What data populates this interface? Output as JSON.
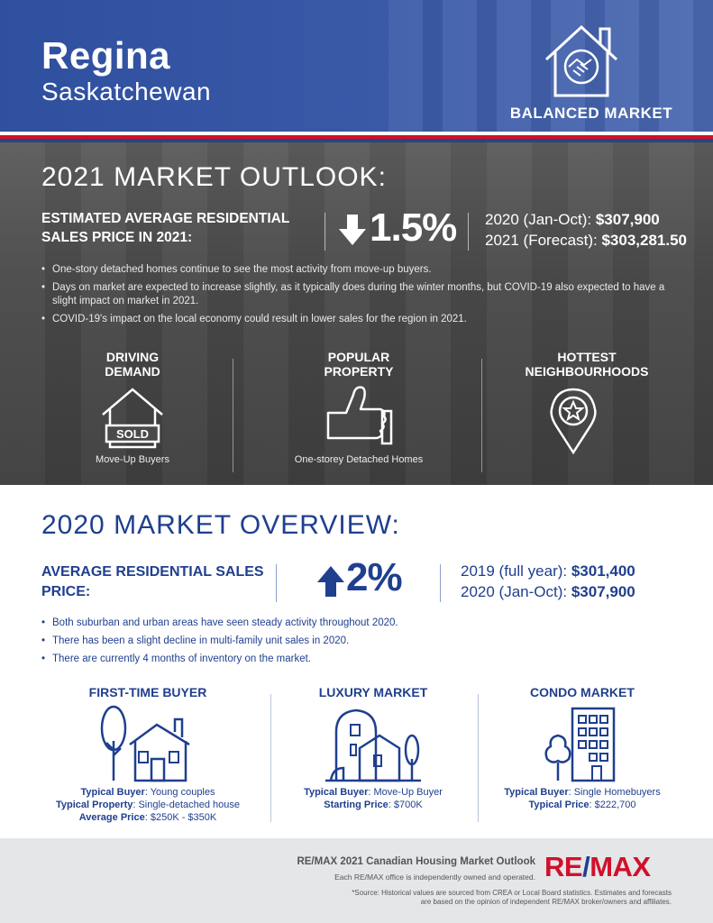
{
  "header": {
    "city": "Regina",
    "province": "Saskatchewan",
    "badge_label": "BALANCED MARKET",
    "badge_icon": "house-handshake-icon"
  },
  "outlook": {
    "title": "2021 MARKET OUTLOOK:",
    "price_label": "ESTIMATED AVERAGE RESIDENTIAL SALES PRICE IN 2021:",
    "change_direction": "down",
    "change_value": "1.5%",
    "line1_label": "2020 (Jan-Oct): ",
    "line1_value": "$307,900",
    "line2_label": "2021 (Forecast): ",
    "line2_value": "$303,281.50",
    "bullets": [
      "One-story detached homes continue to see the most activity from move-up buyers.",
      "Days on market are expected to increase slightly, as it typically does during the winter months, but COVID-19 also expected to have a slight impact on market in 2021.",
      "COVID-19's impact on the local economy could result in lower sales for the region in 2021."
    ],
    "columns": [
      {
        "heading_1": "DRIVING",
        "heading_2": "DEMAND",
        "icon": "house-sold-icon",
        "sold_text": "SOLD",
        "caption": "Move-Up Buyers"
      },
      {
        "heading_1": "POPULAR",
        "heading_2": "PROPERTY",
        "icon": "thumbs-up-icon",
        "caption": "One-storey Detached Homes"
      },
      {
        "heading_1": "HOTTEST",
        "heading_2": "NEIGHBOURHOODS",
        "icon": "map-pin-star-icon",
        "caption": ""
      }
    ]
  },
  "overview": {
    "title": "2020 MARKET OVERVIEW:",
    "price_label": "AVERAGE RESIDENTIAL SALES PRICE:",
    "change_direction": "up",
    "change_value": "2%",
    "line1_label": "2019 (full year): ",
    "line1_value": "$301,400",
    "line2_label": "2020 (Jan-Oct): ",
    "line2_value": "$307,900",
    "bullets": [
      "Both suburban and urban areas have seen steady activity throughout 2020.",
      "There has been a slight decline in multi-family unit sales in 2020.",
      "There are currently 4 months of inventory on the market."
    ],
    "columns": [
      {
        "heading": "FIRST-TIME BUYER",
        "icon": "house-tree-icon",
        "rows": [
          {
            "label": "Typical Buyer",
            "value": ": Young couples"
          },
          {
            "label": "Typical Property",
            "value": ": Single-detached house"
          },
          {
            "label": "Average Price",
            "value": ": $250K - $350K"
          }
        ]
      },
      {
        "heading": "LUXURY MARKET",
        "icon": "luxury-house-icon",
        "rows": [
          {
            "label": "Typical Buyer",
            "value": ": Move-Up Buyer"
          },
          {
            "label": "Starting Price",
            "value": ": $700K"
          }
        ]
      },
      {
        "heading": "CONDO MARKET",
        "icon": "condo-building-icon",
        "rows": [
          {
            "label": "Typical Buyer",
            "value": ": Single Homebuyers"
          },
          {
            "label": "Typical Price",
            "value": ": $222,700"
          }
        ]
      }
    ]
  },
  "footer": {
    "title": "RE/MAX 2021 Canadian Housing Market Outlook",
    "sub": "Each RE/MAX office is independently owned and operated.",
    "source_1": "*Source: Historical values are sourced from CREA or Local Board statistics. Estimates and forecasts",
    "source_2": "are based on the opinion of independent RE/MAX broker/owners and affiliates.",
    "logo_re": "RE",
    "logo_slash": "/",
    "logo_max": "MAX",
    "colors": {
      "brand_blue": "#1f3f8f",
      "brand_red": "#d0112b"
    }
  }
}
